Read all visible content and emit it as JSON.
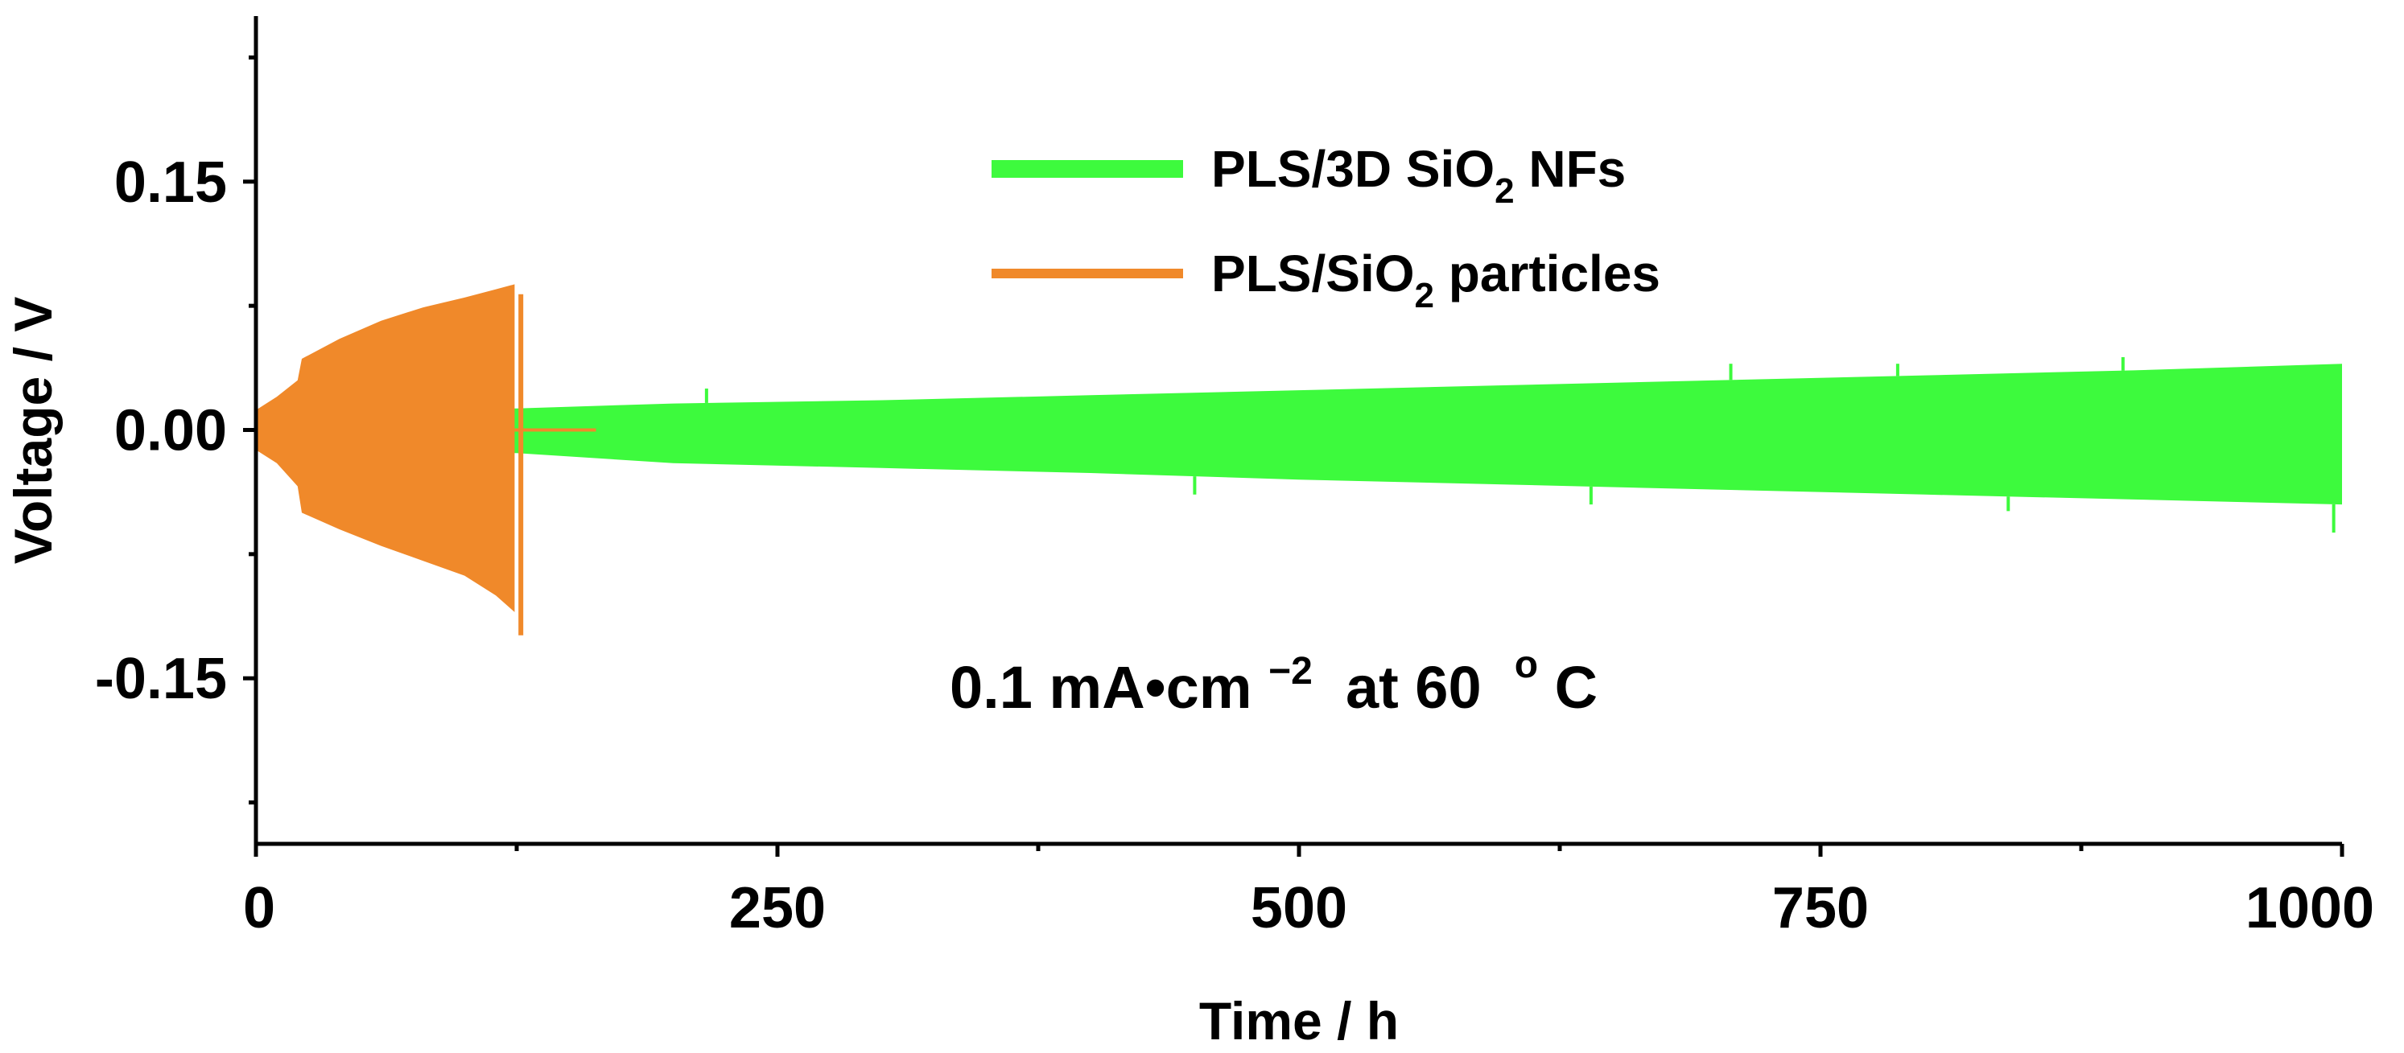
{
  "chart_data": {
    "type": "line",
    "xlabel": "Time / h",
    "ylabel": "Voltage / V",
    "xlim": [
      0,
      1000
    ],
    "ylim": [
      -0.25,
      0.25
    ],
    "x_ticks": [
      0,
      250,
      500,
      750,
      1000
    ],
    "x_tick_labels": [
      "0",
      "250",
      "500",
      "750",
      "1000"
    ],
    "x_minor_ticks": [
      125,
      375,
      625,
      875
    ],
    "y_ticks": [
      0.15,
      0.0,
      -0.15
    ],
    "y_tick_labels": [
      "0.15",
      "0.00",
      "-0.15"
    ],
    "y_minor_ticks": [
      0.225,
      0.075,
      -0.075,
      -0.225
    ],
    "grid": false,
    "legend_position": "top-center",
    "annotation": {
      "prefix": "0.1 mA•cm",
      "superscript": "−2",
      "middle": " at 60 ",
      "degree": "o",
      "suffix": "C"
    },
    "series": [
      {
        "name": "PLS/3D SiO2 NFs",
        "legend_main": "PLS/3D SiO",
        "legend_sub": "2",
        "legend_tail": " NFs",
        "color": "#3dfa3d",
        "envelope": {
          "x": [
            0,
            125,
            200,
            300,
            400,
            500,
            600,
            700,
            800,
            900,
            1000
          ],
          "upper": [
            0.012,
            0.013,
            0.016,
            0.018,
            0.021,
            0.024,
            0.027,
            0.03,
            0.033,
            0.036,
            0.04
          ],
          "lower": [
            -0.012,
            -0.014,
            -0.02,
            -0.023,
            -0.026,
            -0.03,
            -0.033,
            -0.036,
            -0.039,
            -0.042,
            -0.045
          ]
        },
        "spikes": [
          {
            "x": 216,
            "v": 0.025
          },
          {
            "x": 450,
            "v": -0.039
          },
          {
            "x": 640,
            "v": -0.045
          },
          {
            "x": 707,
            "v": 0.04
          },
          {
            "x": 787,
            "v": 0.04
          },
          {
            "x": 840,
            "v": -0.049
          },
          {
            "x": 895,
            "v": 0.044
          },
          {
            "x": 996,
            "v": -0.062
          }
        ]
      },
      {
        "name": "PLS/SiO2 particles",
        "legend_main": "PLS/SiO",
        "legend_sub": "2",
        "legend_tail": " particles",
        "color": "#f0892a",
        "envelope": {
          "x": [
            0,
            10,
            20,
            22,
            40,
            60,
            80,
            100,
            115,
            124
          ],
          "upper": [
            0.012,
            0.02,
            0.03,
            0.043,
            0.055,
            0.066,
            0.074,
            0.08,
            0.085,
            0.088
          ],
          "lower": [
            -0.012,
            -0.02,
            -0.034,
            -0.05,
            -0.06,
            -0.07,
            -0.079,
            -0.088,
            -0.1,
            -0.11
          ]
        },
        "end_spike": {
          "x": 127,
          "min": -0.124,
          "max": 0.082
        },
        "tail": {
          "x": [
            124,
            163
          ],
          "y": 0.0
        }
      }
    ]
  }
}
